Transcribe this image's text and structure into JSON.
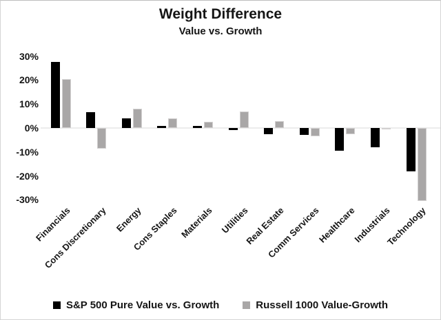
{
  "title": "Weight Difference",
  "subtitle": "Value vs. Growth",
  "colors": {
    "series1": "#000000",
    "series2": "#a9a7a7",
    "zero_line": "#ececec",
    "text": "#151515"
  },
  "chart_data": {
    "type": "bar",
    "title": "Weight Difference",
    "subtitle": "Value vs. Growth",
    "categories": [
      "Financials",
      "Cons Discretionary",
      "Energy",
      "Cons Staples",
      "Materials",
      "Utilities",
      "Real Estate",
      "Comm Services",
      "Healthcare",
      "Industrials",
      "Technology"
    ],
    "series": [
      {
        "name": "S&P 500 Pure Value vs. Growth",
        "color": "#000000",
        "values": [
          27.5,
          6.5,
          4,
          1,
          1,
          -1,
          -2.5,
          -3,
          -9.5,
          -8,
          -18
        ]
      },
      {
        "name": "Russell 1000 Value-Growth",
        "color": "#a9a7a7",
        "values": [
          20.5,
          -8.5,
          8,
          4,
          2.5,
          7,
          3,
          -3.5,
          -2.5,
          -0.5,
          -30.5
        ]
      }
    ],
    "y_ticks": [
      30,
      20,
      10,
      0,
      -10,
      -20,
      -30
    ],
    "y_tick_labels": [
      "30%",
      "20%",
      "10%",
      "0%",
      "-10%",
      "-20%",
      "-30%"
    ],
    "ylim": [
      -32,
      30
    ],
    "xlabel": "",
    "ylabel": "",
    "grid": false,
    "legend_position": "bottom"
  },
  "legend": {
    "item1": "S&P 500 Pure Value vs. Growth",
    "item2": "Russell 1000 Value-Growth"
  }
}
